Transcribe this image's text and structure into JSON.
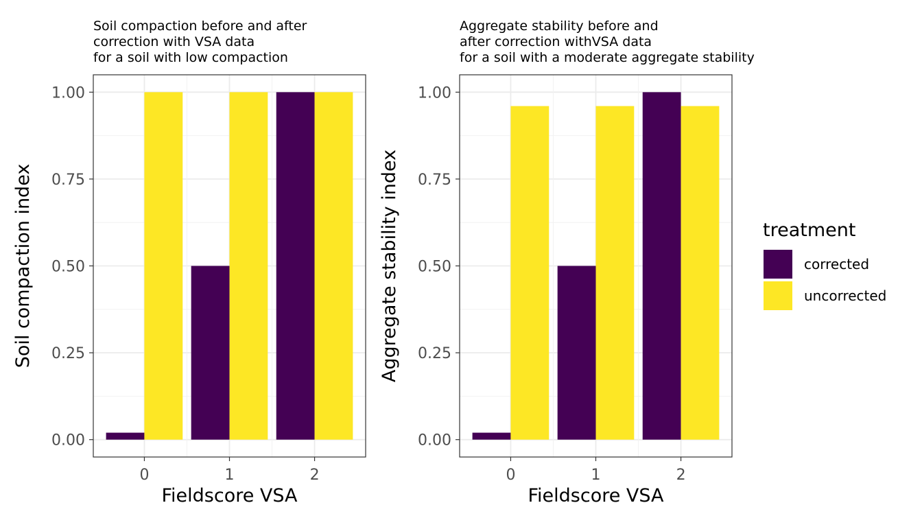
{
  "chart_data": [
    {
      "type": "bar",
      "title_lines": [
        "Soil compaction before and after",
        "correction with VSA data",
        "for a soil with low compaction"
      ],
      "xlabel": "Fieldscore VSA",
      "ylabel": "Soil compaction index",
      "categories": [
        "0",
        "1",
        "2"
      ],
      "yticks": [
        "0.00",
        "0.25",
        "0.50",
        "0.75",
        "1.00"
      ],
      "ylim": [
        0,
        1.05
      ],
      "grid": true,
      "series": [
        {
          "name": "corrected",
          "values": [
            0.02,
            0.5,
            1.0
          ]
        },
        {
          "name": "uncorrected",
          "values": [
            1.0,
            1.0,
            1.0
          ]
        }
      ]
    },
    {
      "type": "bar",
      "title_lines": [
        "Aggregate stability before and",
        "after correction withVSA data",
        "for a soil with a moderate aggregate stability"
      ],
      "xlabel": "Fieldscore VSA",
      "ylabel": "Aggregate stability index",
      "categories": [
        "0",
        "1",
        "2"
      ],
      "yticks": [
        "0.00",
        "0.25",
        "0.50",
        "0.75",
        "1.00"
      ],
      "ylim": [
        0,
        1.05
      ],
      "grid": true,
      "series": [
        {
          "name": "corrected",
          "values": [
            0.02,
            0.5,
            1.0
          ]
        },
        {
          "name": "uncorrected",
          "values": [
            0.96,
            0.96,
            0.96
          ]
        }
      ]
    }
  ],
  "legend": {
    "title": "treatment",
    "placement": "right",
    "items": [
      {
        "label": "corrected",
        "color": "#440154"
      },
      {
        "label": "uncorrected",
        "color": "#FDE725"
      }
    ]
  }
}
